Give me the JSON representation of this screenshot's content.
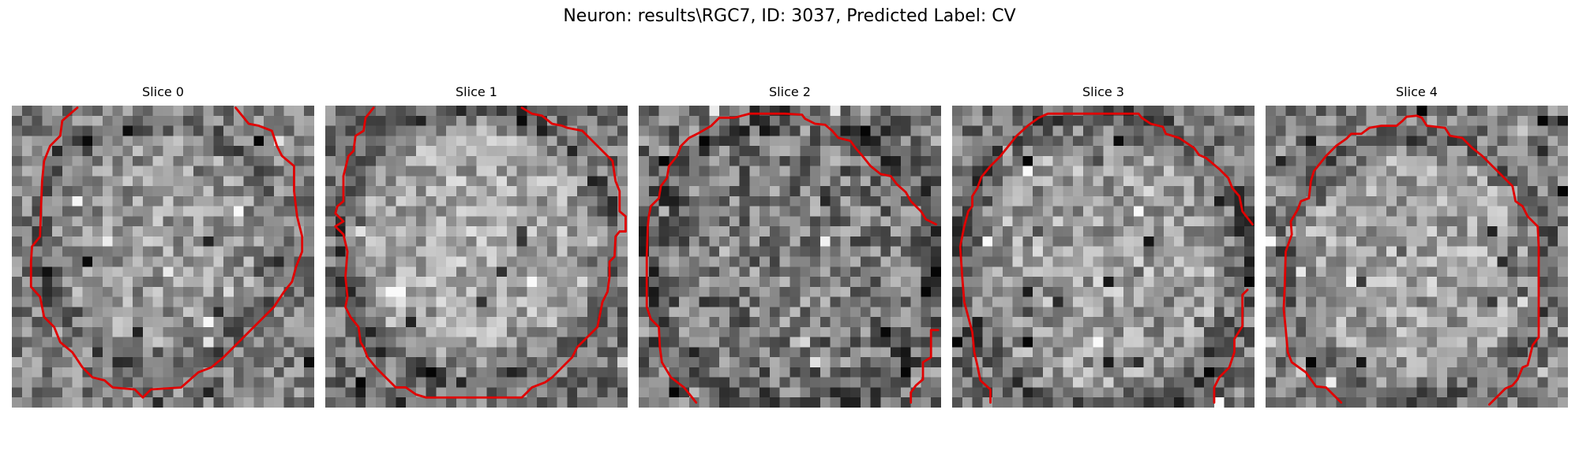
{
  "figure": {
    "title": "Neuron: results\\RGC7, ID: 3037, Predicted Label: CV"
  },
  "colors": {
    "contour": "#e00000",
    "background": "#ffffff"
  },
  "panels": [
    {
      "title": "Slice 0"
    },
    {
      "title": "Slice 1"
    },
    {
      "title": "Slice 2"
    },
    {
      "title": "Slice 3"
    },
    {
      "title": "Slice 4"
    }
  ]
}
